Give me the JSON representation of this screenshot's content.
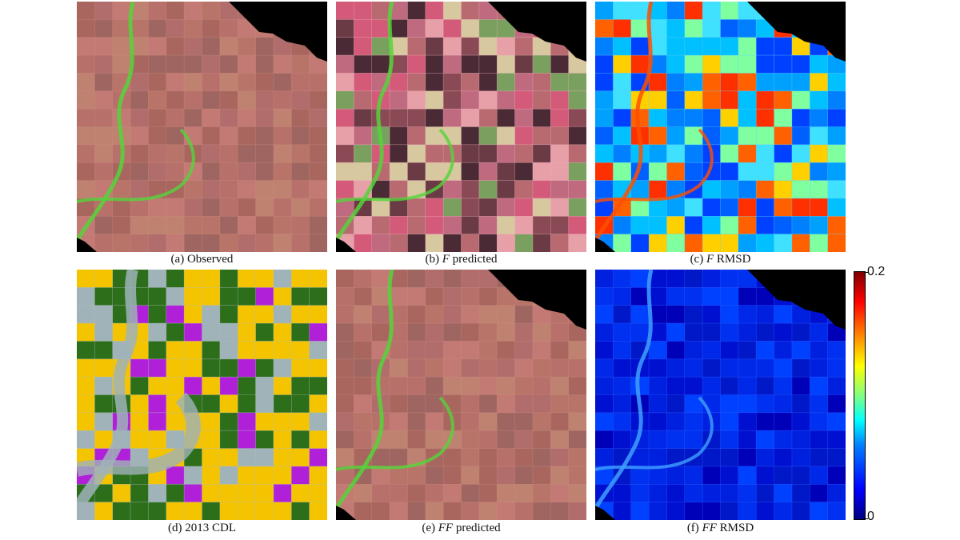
{
  "figure": {
    "panels": [
      {
        "id": "a",
        "caption_prefix": "(a)  Observed",
        "caption_italic": "",
        "caption_suffix": "",
        "palette": "falsecolor"
      },
      {
        "id": "b",
        "caption_prefix": "(b) ",
        "caption_italic": "F",
        "caption_suffix": " predicted",
        "palette": "falsecolor-dark"
      },
      {
        "id": "c",
        "caption_prefix": "(c) ",
        "caption_italic": "F",
        "caption_suffix": " RMSD",
        "palette": "jet-high"
      },
      {
        "id": "d",
        "caption_prefix": "(d) 2013 CDL",
        "caption_italic": "",
        "caption_suffix": "",
        "palette": "cdl"
      },
      {
        "id": "e",
        "caption_prefix": "(e) ",
        "caption_italic": "FF",
        "caption_suffix": " predicted",
        "palette": "falsecolor"
      },
      {
        "id": "f",
        "caption_prefix": "(f) ",
        "caption_italic": "FF",
        "caption_suffix": " RMSD",
        "palette": "jet-low"
      }
    ],
    "colorbar": {
      "max_label": "0.2",
      "min_label": "0",
      "colors": [
        "#00007f",
        "#0000ff",
        "#0080ff",
        "#00ffff",
        "#80ff80",
        "#ffff00",
        "#ff8000",
        "#ff0000",
        "#7f0000"
      ]
    },
    "colors": {
      "crop_corn": "#f5c400",
      "crop_soy": "#2d6e1a",
      "crop_other_purple": "#b020d8",
      "urban_grey": "#9fb3b8",
      "falsecolor_field": "#b8706a",
      "vegetation_green": "#55d43a",
      "nodata": "#000000"
    }
  }
}
